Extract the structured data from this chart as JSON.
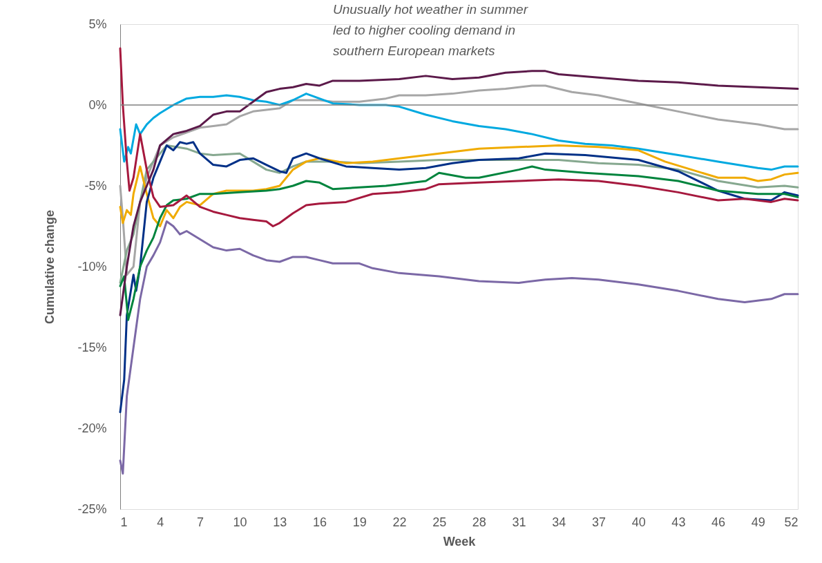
{
  "chart_data": {
    "type": "line",
    "xlabel": "Week",
    "ylabel": "Cumulative change",
    "annotations": [
      "Unusually hot weather in summer\nled to higher cooling demand in\nsouthern European markets"
    ],
    "xlim": [
      1,
      52
    ],
    "xticks": [
      1,
      4,
      7,
      10,
      13,
      16,
      19,
      22,
      25,
      28,
      31,
      34,
      37,
      40,
      43,
      46,
      49,
      52
    ],
    "ylim": [
      -25,
      5
    ],
    "yticks": [
      {
        "value": -25,
        "label": "-25%"
      },
      {
        "value": -20,
        "label": "-20%"
      },
      {
        "value": -15,
        "label": "-15%"
      },
      {
        "value": -10,
        "label": "-10%"
      },
      {
        "value": -5,
        "label": "-5%"
      },
      {
        "value": 0,
        "label": "0%"
      },
      {
        "value": 5,
        "label": "5%"
      }
    ],
    "grid": false,
    "legend": false,
    "line_style": "solid",
    "marker": "none",
    "ref_lines": [
      {
        "axis": "y",
        "value": 0,
        "color": "#7f7f7f"
      }
    ],
    "series": [
      {
        "color": "#a6a6a6",
        "x": [
          1,
          1.2,
          1.5,
          2,
          2.5,
          3,
          4,
          5,
          6,
          7,
          8,
          9,
          10,
          11,
          12,
          13,
          14,
          16,
          17,
          19,
          21,
          22,
          24,
          26,
          28,
          30,
          32,
          33,
          35,
          37,
          40,
          43,
          46,
          49,
          51,
          52
        ],
        "values": [
          -5,
          -7,
          -10.5,
          -10,
          -6,
          -4.5,
          -2.5,
          -2,
          -1.7,
          -1.4,
          -1.3,
          -1.2,
          -0.7,
          -0.4,
          -0.3,
          -0.2,
          0.3,
          0.3,
          0.2,
          0.2,
          0.4,
          0.6,
          0.6,
          0.7,
          0.9,
          1.0,
          1.2,
          1.2,
          0.8,
          0.6,
          0.1,
          -0.4,
          -0.9,
          -1.2,
          -1.5,
          -1.5
        ]
      },
      {
        "color": "#00a9e0",
        "x": [
          1,
          1.3,
          1.6,
          1.8,
          2.2,
          2.5,
          3,
          3.5,
          4,
          5,
          6,
          7,
          8,
          9,
          10,
          11,
          12,
          13,
          14,
          15,
          16,
          17,
          19,
          21,
          22,
          24,
          26,
          28,
          30,
          32,
          34,
          36,
          38,
          40,
          43,
          46,
          49,
          50,
          51,
          52
        ],
        "values": [
          -1.5,
          -3.5,
          -2.6,
          -3,
          -1.2,
          -1.8,
          -1.2,
          -0.8,
          -0.5,
          0,
          0.4,
          0.5,
          0.5,
          0.6,
          0.5,
          0.3,
          0.2,
          0,
          0.3,
          0.7,
          0.4,
          0.1,
          0,
          0,
          -0.1,
          -0.6,
          -1.0,
          -1.3,
          -1.5,
          -1.8,
          -2.2,
          -2.4,
          -2.5,
          -2.7,
          -3.1,
          -3.5,
          -3.9,
          -4.0,
          -3.8,
          -3.8
        ]
      },
      {
        "color": "#86a88f",
        "x": [
          1,
          1.5,
          2,
          2.5,
          3,
          3.5,
          4.5,
          6,
          7,
          8,
          10,
          11,
          12,
          13,
          14,
          15,
          17,
          19,
          22,
          25,
          28,
          31,
          34,
          37,
          40,
          43,
          46,
          49,
          51,
          52
        ],
        "values": [
          -11,
          -9,
          -8,
          -6,
          -4,
          -3.5,
          -2.5,
          -2.7,
          -3.0,
          -3.1,
          -3.0,
          -3.5,
          -4.0,
          -4.2,
          -3.8,
          -3.5,
          -3.5,
          -3.6,
          -3.5,
          -3.4,
          -3.4,
          -3.4,
          -3.4,
          -3.6,
          -3.7,
          -4.0,
          -4.7,
          -5.1,
          -5.0,
          -5.1
        ]
      },
      {
        "color": "#f0ab00",
        "x": [
          1,
          1.2,
          1.5,
          1.8,
          2,
          2.5,
          3,
          3.5,
          4,
          4.5,
          5,
          5.5,
          6,
          7,
          8,
          9,
          10,
          11,
          12,
          13,
          14,
          15,
          16,
          18,
          20,
          22,
          25,
          28,
          31,
          34,
          37,
          40,
          42,
          44,
          46,
          48,
          49,
          50,
          51,
          52
        ],
        "values": [
          -6.3,
          -7.3,
          -6.5,
          -6.8,
          -5.5,
          -3.8,
          -5.5,
          -7,
          -7.5,
          -6.5,
          -7,
          -6.3,
          -6,
          -6.2,
          -5.5,
          -5.3,
          -5.3,
          -5.3,
          -5.2,
          -5.0,
          -4.0,
          -3.5,
          -3.3,
          -3.6,
          -3.5,
          -3.3,
          -3.0,
          -2.7,
          -2.6,
          -2.5,
          -2.6,
          -2.8,
          -3.5,
          -4.0,
          -4.5,
          -4.5,
          -4.7,
          -4.6,
          -4.3,
          -4.2
        ]
      },
      {
        "color": "#003087",
        "x": [
          1,
          1.3,
          1.5,
          2,
          2.2,
          2.5,
          3,
          3.5,
          4,
          4.5,
          5,
          5.5,
          6,
          6.5,
          7,
          8,
          9,
          10,
          11,
          12,
          13,
          13.5,
          14,
          15,
          16,
          18,
          20,
          22,
          24,
          26,
          28,
          31,
          33,
          36,
          40,
          43,
          46,
          48,
          50,
          51,
          52
        ],
        "values": [
          -19,
          -17,
          -13,
          -10.5,
          -11.5,
          -10,
          -6,
          -4.5,
          -3.5,
          -2.5,
          -2.8,
          -2.3,
          -2.4,
          -2.3,
          -3.0,
          -3.7,
          -3.8,
          -3.4,
          -3.3,
          -3.7,
          -4.1,
          -4.2,
          -3.3,
          -3.0,
          -3.3,
          -3.8,
          -3.9,
          -4.0,
          -3.9,
          -3.6,
          -3.4,
          -3.3,
          -3.0,
          -3.1,
          -3.4,
          -4.1,
          -5.3,
          -5.8,
          -5.9,
          -5.4,
          -5.6
        ]
      },
      {
        "color": "#00843d",
        "x": [
          1,
          1.3,
          1.6,
          2,
          2.5,
          3,
          3.5,
          4,
          4.5,
          5,
          6,
          7,
          8,
          10,
          12,
          13,
          14,
          15,
          16,
          17,
          19,
          21,
          22,
          24,
          25,
          27,
          28,
          31,
          32,
          33,
          36,
          40,
          43,
          46,
          49,
          51,
          52
        ],
        "values": [
          -11.2,
          -10.6,
          -13.3,
          -12,
          -10,
          -9,
          -8.2,
          -7,
          -6.2,
          -5.9,
          -5.8,
          -5.5,
          -5.5,
          -5.4,
          -5.3,
          -5.2,
          -5.0,
          -4.7,
          -4.8,
          -5.2,
          -5.1,
          -5.0,
          -4.9,
          -4.7,
          -4.2,
          -4.5,
          -4.5,
          -4.0,
          -3.8,
          -4.0,
          -4.2,
          -4.4,
          -4.7,
          -5.3,
          -5.5,
          -5.5,
          -5.7
        ]
      },
      {
        "color": "#a6193e",
        "x": [
          1,
          1.2,
          1.5,
          1.7,
          2,
          2.5,
          3,
          3.5,
          4,
          5,
          6,
          7,
          8,
          9,
          10,
          11,
          12,
          12.5,
          13,
          14,
          15,
          16,
          18,
          20,
          22,
          24,
          25,
          28,
          31,
          34,
          37,
          40,
          43,
          46,
          48,
          50,
          51,
          52
        ],
        "values": [
          3.5,
          0,
          -3.5,
          -5.3,
          -4.5,
          -1.8,
          -4,
          -5.7,
          -6.3,
          -6.2,
          -5.6,
          -6.3,
          -6.6,
          -6.8,
          -7,
          -7.1,
          -7.2,
          -7.5,
          -7.3,
          -6.7,
          -6.2,
          -6.1,
          -6.0,
          -5.5,
          -5.4,
          -5.2,
          -4.9,
          -4.8,
          -4.7,
          -4.6,
          -4.7,
          -5.0,
          -5.4,
          -5.9,
          -5.8,
          -6.0,
          -5.8,
          -5.9
        ]
      },
      {
        "color": "#5c1a4a",
        "x": [
          1,
          1.5,
          2,
          2.5,
          3,
          3.5,
          4,
          5,
          6,
          7,
          8,
          9,
          10,
          11,
          12,
          13,
          14,
          15,
          16,
          17,
          19,
          22,
          24,
          26,
          28,
          30,
          32,
          33,
          34,
          37,
          40,
          43,
          46,
          49,
          52
        ],
        "values": [
          -13,
          -10,
          -7.5,
          -6,
          -5,
          -4,
          -2.5,
          -1.8,
          -1.6,
          -1.3,
          -0.6,
          -0.4,
          -0.4,
          0.2,
          0.8,
          1.0,
          1.1,
          1.3,
          1.2,
          1.5,
          1.5,
          1.6,
          1.8,
          1.6,
          1.7,
          2.0,
          2.1,
          2.1,
          1.9,
          1.7,
          1.5,
          1.4,
          1.2,
          1.1,
          1.0
        ]
      },
      {
        "color": "#7b68a6",
        "x": [
          1,
          1.2,
          1.5,
          2,
          2.5,
          3,
          3.5,
          4,
          4.5,
          5,
          5.5,
          6,
          7,
          8,
          9,
          10,
          11,
          12,
          13,
          14,
          15,
          16,
          17,
          18,
          19,
          20,
          22,
          25,
          28,
          31,
          33,
          35,
          37,
          40,
          43,
          46,
          48,
          50,
          51,
          52
        ],
        "values": [
          -22,
          -22.8,
          -18,
          -15,
          -12,
          -10,
          -9.3,
          -8.5,
          -7.2,
          -7.5,
          -8,
          -7.8,
          -8.3,
          -8.8,
          -9.0,
          -8.9,
          -9.3,
          -9.6,
          -9.7,
          -9.4,
          -9.4,
          -9.6,
          -9.8,
          -9.8,
          -9.8,
          -10.1,
          -10.4,
          -10.6,
          -10.9,
          -11.0,
          -10.8,
          -10.7,
          -10.8,
          -11.1,
          -11.5,
          -12.0,
          -12.2,
          -12.0,
          -11.7,
          -11.7
        ]
      }
    ]
  }
}
